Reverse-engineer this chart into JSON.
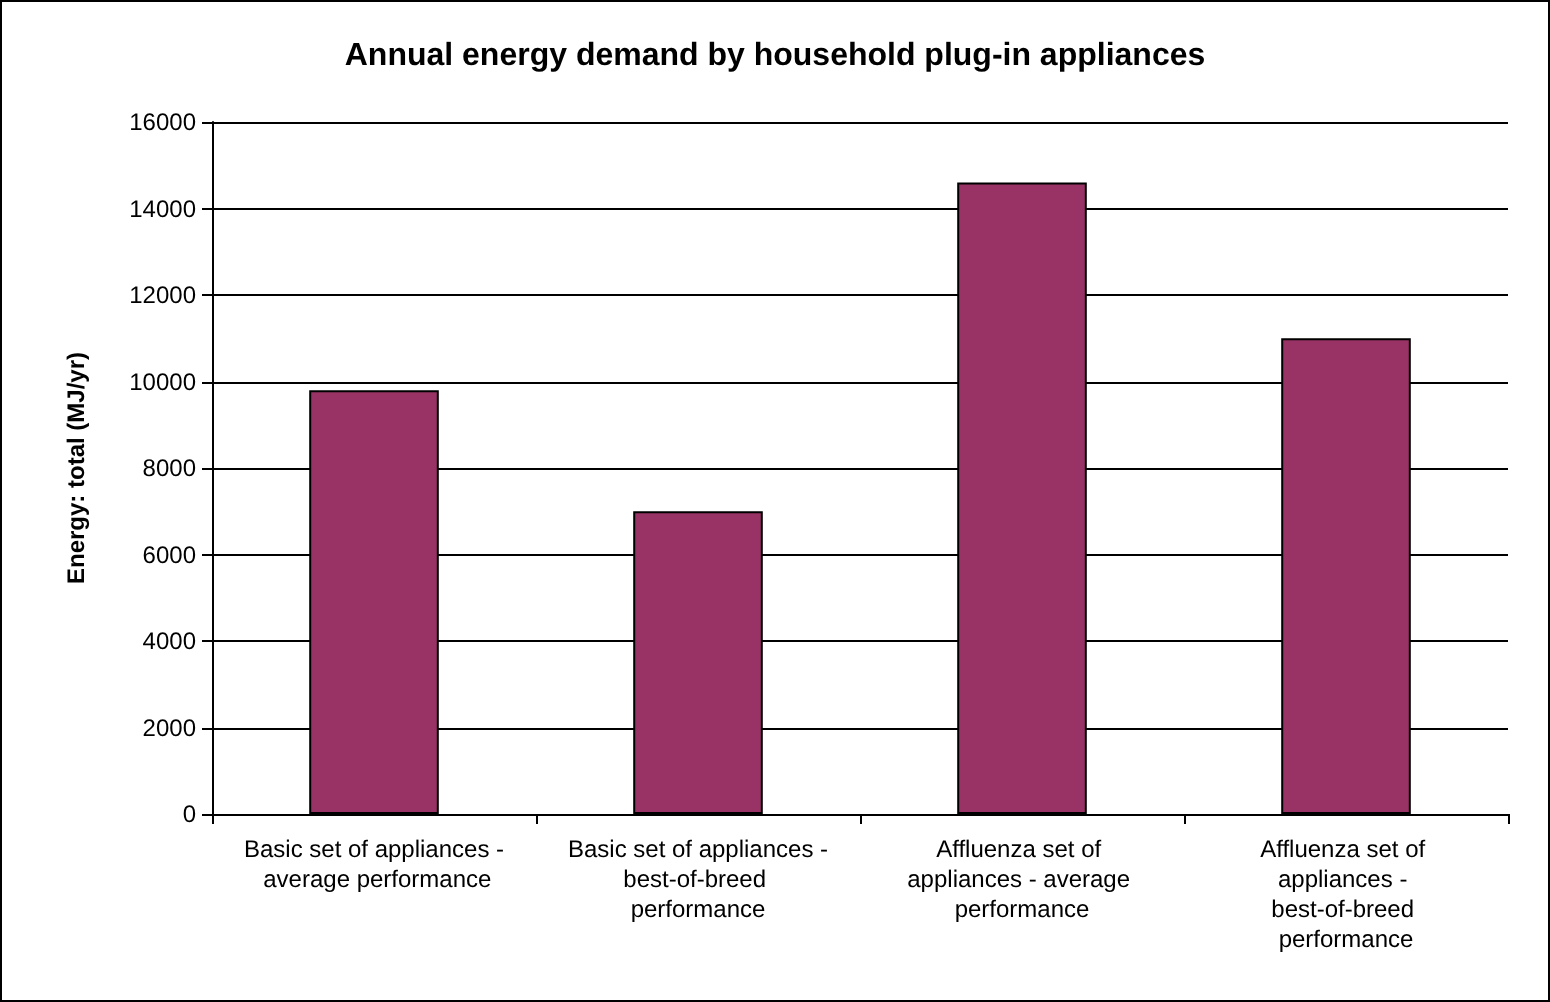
{
  "chart_data": {
    "type": "bar",
    "title": "Annual energy demand by household plug-in appliances",
    "ylabel": "Energy: total (MJ/yr)",
    "categories": [
      "Basic set of appliances - average performance",
      "Basic set of appliances - best-of-breed  performance",
      "Affluenza set of appliances - average performance",
      "Affluenza set of appliances - best-of-breed performance"
    ],
    "values": [
      9800,
      7000,
      14600,
      11000
    ],
    "color": "#993366",
    "ylim": [
      0,
      16000
    ],
    "yticks": [
      0,
      2000,
      4000,
      6000,
      8000,
      10000,
      12000,
      14000,
      16000
    ],
    "grid": "y"
  }
}
